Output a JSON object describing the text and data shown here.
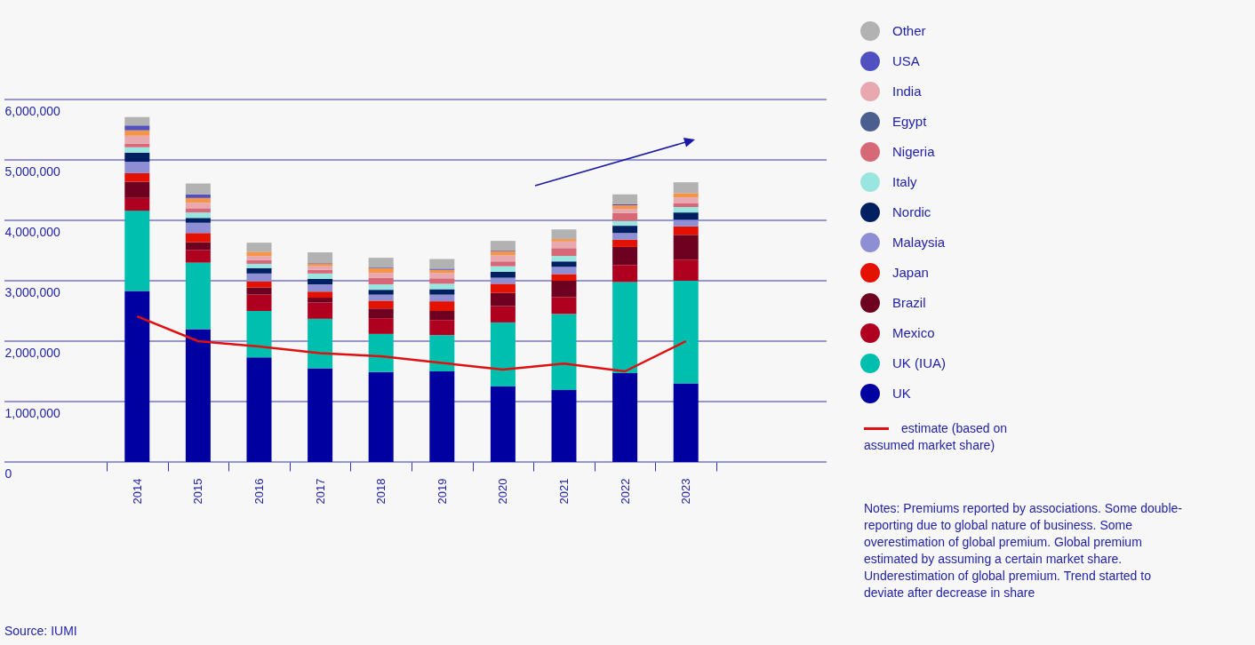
{
  "chart_data": {
    "type": "bar",
    "stacked": true,
    "categories": [
      "2014",
      "2015",
      "2016",
      "2017",
      "2018",
      "2019",
      "2020",
      "2021",
      "2022",
      "2023"
    ],
    "ylim": [
      0,
      6000000
    ],
    "yticks": [
      0,
      {
        "value": 1000000,
        "label": "1,000,000"
      },
      {
        "value": 2000000,
        "label": "2,000,000"
      },
      {
        "value": 3000000,
        "label": "3,000,000"
      },
      {
        "value": 4000000,
        "label": "4,000,000"
      },
      {
        "value": 5000000,
        "label": "5,000,000"
      },
      {
        "value": 6000000,
        "label": "6,000,000"
      }
    ],
    "grid": "y",
    "legend": "right",
    "series": [
      {
        "name": "UK",
        "color": "#0000a0",
        "values": [
          2830000,
          2200000,
          1730000,
          1550000,
          1490000,
          1500000,
          1250000,
          1190000,
          1470000,
          1300000
        ]
      },
      {
        "name": "UK (IUA)",
        "color": "#00bfae",
        "values": [
          1330000,
          1100000,
          770000,
          820000,
          630000,
          600000,
          1060000,
          1260000,
          1510000,
          1700000
        ]
      },
      {
        "name": "Mexico",
        "color": "#b00020",
        "values": [
          210000,
          210000,
          270000,
          270000,
          260000,
          250000,
          270000,
          280000,
          280000,
          350000
        ]
      },
      {
        "name": "Brazil",
        "color": "#6e0020",
        "values": [
          270000,
          130000,
          120000,
          80000,
          160000,
          150000,
          220000,
          270000,
          300000,
          410000
        ]
      },
      {
        "name": "Japan",
        "color": "#e41000",
        "values": [
          140000,
          150000,
          100000,
          100000,
          130000,
          160000,
          150000,
          110000,
          120000,
          140000
        ]
      },
      {
        "name": "Malaysia",
        "color": "#8e8ed4",
        "values": [
          190000,
          170000,
          130000,
          120000,
          100000,
          110000,
          100000,
          120000,
          110000,
          110000
        ]
      },
      {
        "name": "Nordic",
        "color": "#001f60",
        "values": [
          150000,
          80000,
          90000,
          90000,
          80000,
          90000,
          100000,
          90000,
          120000,
          120000
        ]
      },
      {
        "name": "Italy",
        "color": "#99e6e0",
        "values": [
          90000,
          90000,
          70000,
          90000,
          90000,
          90000,
          90000,
          90000,
          80000,
          90000
        ]
      },
      {
        "name": "Nigeria",
        "color": "#d66878",
        "values": [
          60000,
          70000,
          60000,
          60000,
          110000,
          90000,
          80000,
          130000,
          130000,
          60000
        ]
      },
      {
        "name": "Egypt",
        "color": "#4a5e90",
        "values": [
          null,
          null,
          null,
          null,
          null,
          null,
          null,
          null,
          null,
          null
        ]
      },
      {
        "name": "India",
        "color": "#e8a8b0",
        "values": [
          130000,
          90000,
          70000,
          60000,
          80000,
          90000,
          100000,
          110000,
          70000,
          100000
        ]
      },
      {
        "color": "#f5954a",
        "values": [
          90000,
          80000,
          70000,
          40000,
          80000,
          50000,
          70000,
          40000,
          60000,
          70000
        ]
      },
      {
        "name": "USA",
        "color": "#5050c0",
        "values": [
          80000,
          60000,
          null,
          10000,
          10000,
          20000,
          10000,
          null,
          20000,
          null
        ]
      },
      {
        "name": "Other",
        "color": "#b2b2b2",
        "values": [
          140000,
          180000,
          150000,
          180000,
          160000,
          160000,
          160000,
          160000,
          160000,
          180000
        ]
      },
      {
        "name": "estimate (based on assumed market share)",
        "type": "line",
        "color": "#e01010",
        "values": [
          2410000,
          2000000,
          1910000,
          1800000,
          1750000,
          1640000,
          1530000,
          1630000,
          1500000,
          2000000
        ]
      }
    ],
    "annotations": [
      "Notes: Premiums reported by associations. Some double-reporting due to global nature of business. Some overestimation of global premium. Global premium estimated by assuming a certain market share. Underestimation of global premium. Trend started to deviate after decrease in share",
      "Source: IUMI"
    ]
  }
}
